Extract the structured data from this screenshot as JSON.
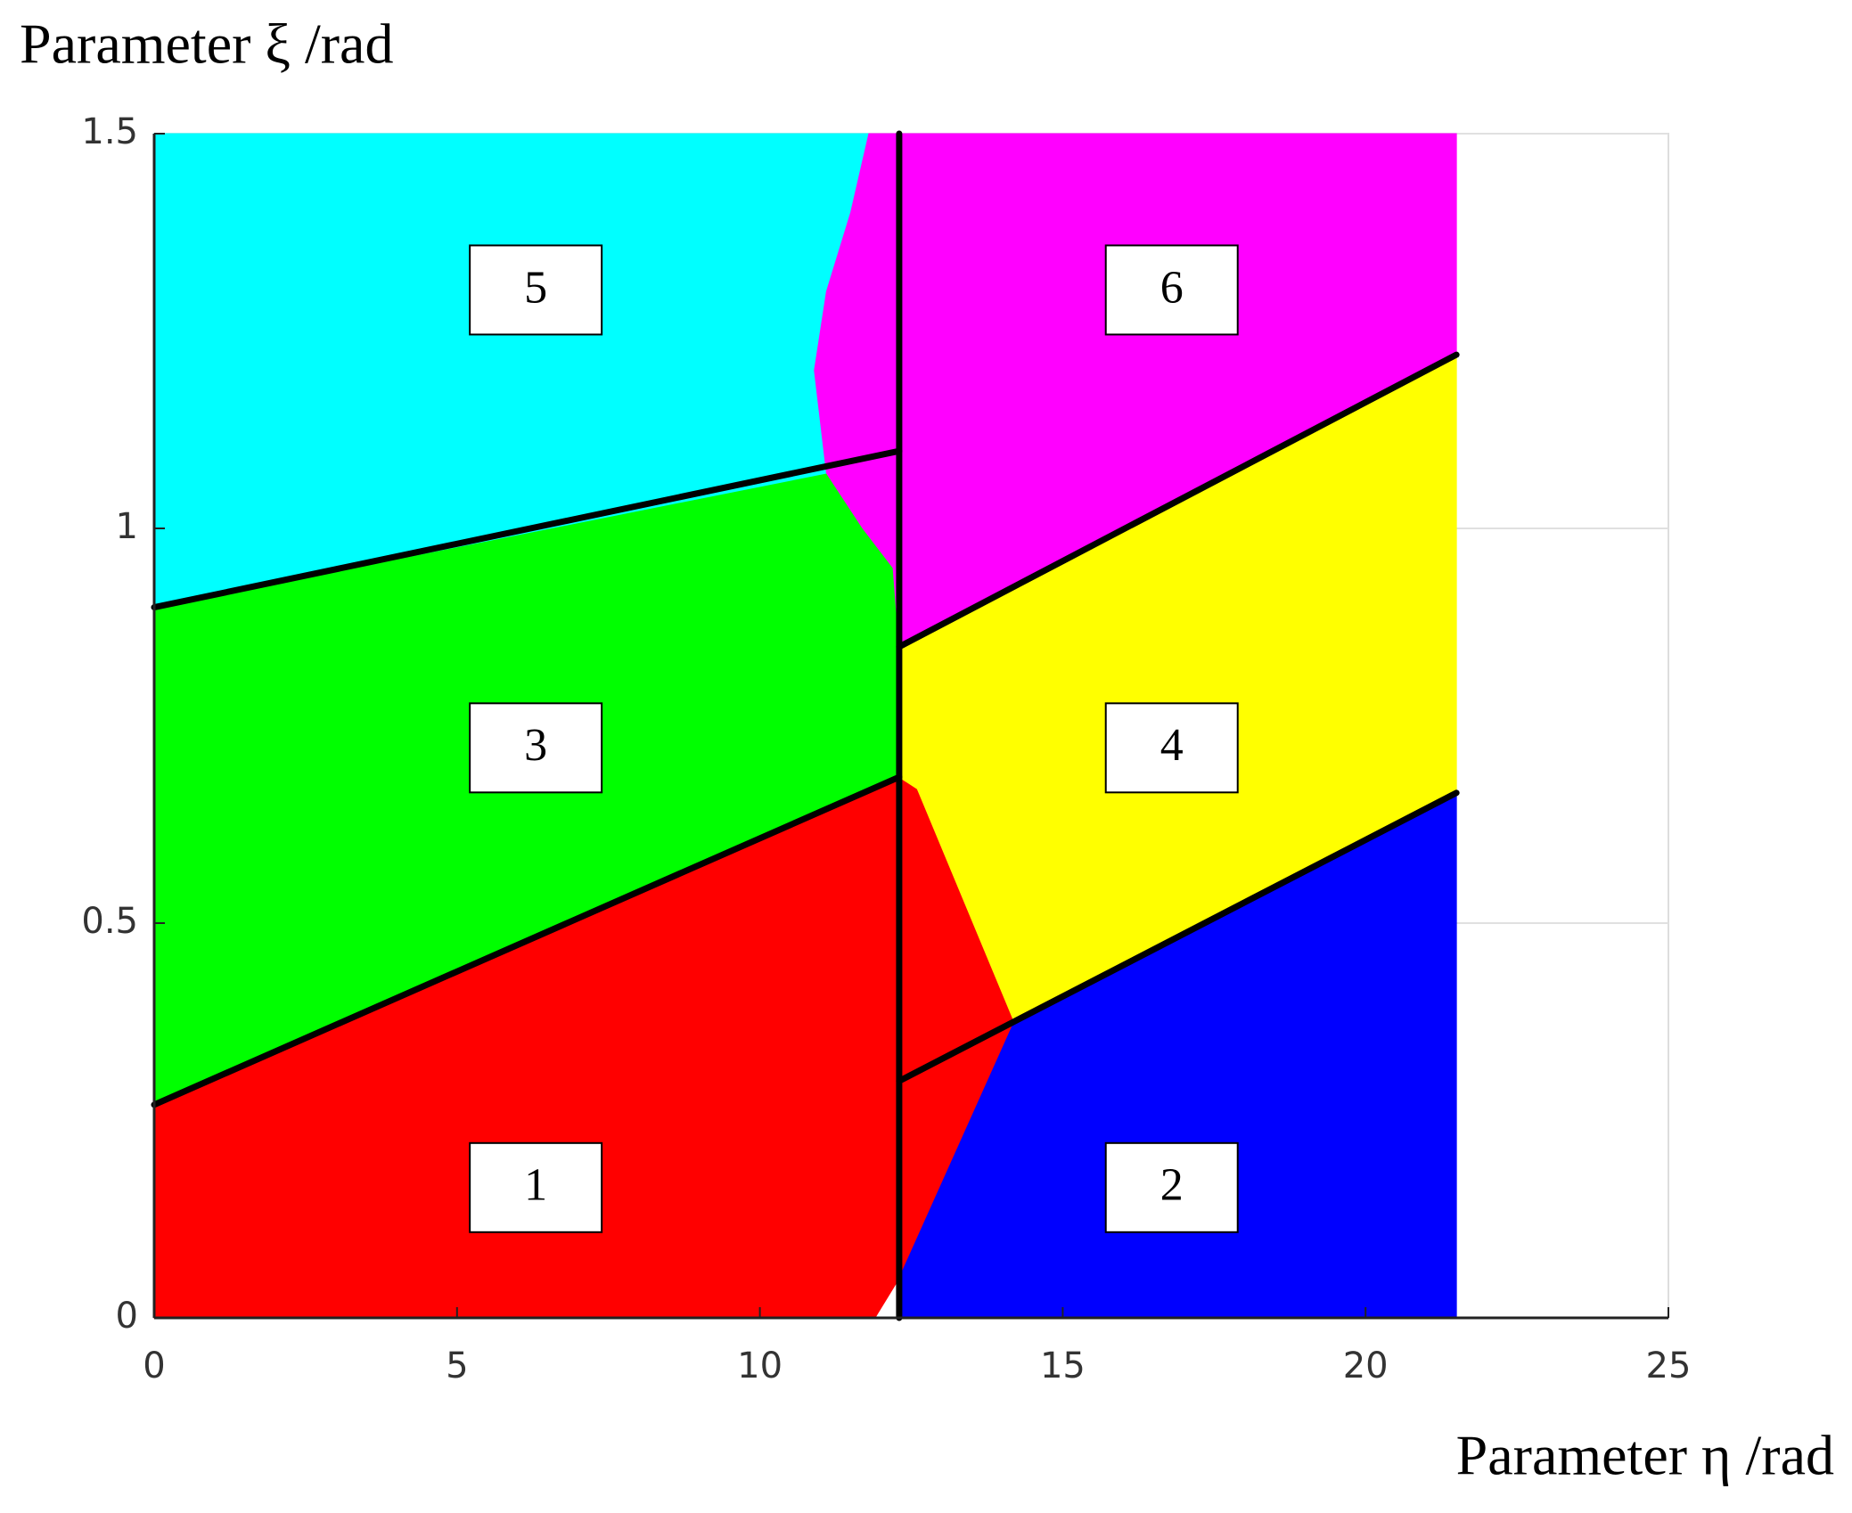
{
  "chart_data": {
    "type": "region",
    "y_label": "Parameter ξ /rad",
    "x_label": "Parameter η /rad",
    "xlim": [
      0,
      25
    ],
    "xticks": [
      0,
      5,
      10,
      15,
      20,
      25
    ],
    "ylim": [
      0,
      1.5
    ],
    "yticks": [
      0,
      0.5,
      1,
      1.5
    ],
    "grid": true,
    "regions": [
      {
        "label": "1",
        "color": "#ff0000",
        "label_x": 6.3,
        "label_y": 0.165,
        "x": [
          0,
          11.9,
          12.3,
          14.2,
          12.6,
          12.3,
          0
        ],
        "y": [
          0,
          0,
          0.05,
          0.375,
          0.67,
          0.685,
          0.27
        ]
      },
      {
        "label": "2",
        "color": "#0000ff",
        "label_x": 16.8,
        "label_y": 0.165,
        "x": [
          12.3,
          21.5,
          21.5,
          14.2,
          12.3
        ],
        "y": [
          0,
          0,
          0.665,
          0.375,
          0.05
        ]
      },
      {
        "label": "3",
        "color": "#00ff00",
        "label_x": 6.3,
        "label_y": 0.722,
        "x": [
          0,
          12.3,
          12.5,
          12.3,
          11.7,
          11.1,
          0
        ],
        "y": [
          0.27,
          0.685,
          0.9,
          0.95,
          1.0,
          1.07,
          0.9
        ]
      },
      {
        "label": "4",
        "color": "#ffff00",
        "label_x": 16.8,
        "label_y": 0.722,
        "x": [
          12.3,
          21.5,
          21.5,
          14.2,
          12.6,
          12.3
        ],
        "y": [
          0.85,
          1.22,
          0.665,
          0.375,
          0.67,
          0.685
        ]
      },
      {
        "label": "5",
        "color": "#00ffff",
        "label_x": 6.3,
        "label_y": 1.302,
        "x": [
          0,
          11.1,
          10.9,
          11.1,
          11.5,
          11.8,
          0
        ],
        "y": [
          0.9,
          1.07,
          1.2,
          1.3,
          1.4,
          1.5,
          1.5
        ]
      },
      {
        "label": "6",
        "color": "#ff00ff",
        "label_x": 16.8,
        "label_y": 1.302,
        "x": [
          11.8,
          21.5,
          21.5,
          12.3,
          12.2,
          11.7,
          11.1,
          10.9,
          11.1,
          11.5
        ],
        "y": [
          1.5,
          1.5,
          1.22,
          0.85,
          0.95,
          1.0,
          1.07,
          1.2,
          1.3,
          1.4
        ]
      }
    ],
    "boundaries": [
      {
        "x": [
          12.3,
          12.3
        ],
        "y": [
          0,
          1.5
        ]
      },
      {
        "x": [
          0,
          12.3
        ],
        "y": [
          0.27,
          0.685
        ]
      },
      {
        "x": [
          0,
          12.3
        ],
        "y": [
          0.9,
          1.098
        ]
      },
      {
        "x": [
          12.3,
          21.5
        ],
        "y": [
          0.85,
          1.22
        ]
      },
      {
        "x": [
          12.3,
          21.5
        ],
        "y": [
          0.3,
          0.665
        ]
      }
    ]
  }
}
